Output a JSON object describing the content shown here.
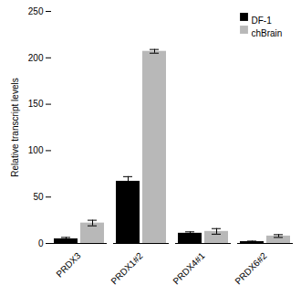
{
  "chart_data": {
    "type": "bar",
    "categories": [
      "PRDX3",
      "PRDX1#2",
      "PRDX4#1",
      "PRDX6#2"
    ],
    "series": [
      {
        "name": "DF-1",
        "color": "#000000",
        "values": [
          5,
          67,
          11,
          2
        ],
        "errors": [
          1.5,
          5,
          1.5,
          0.5
        ]
      },
      {
        "name": "chBrain",
        "color": "#b8b8b8",
        "values": [
          22,
          207,
          13,
          8
        ],
        "errors": [
          3,
          2,
          3,
          1.5
        ]
      }
    ],
    "ylabel": "Relative transcript levels",
    "ylim": [
      0,
      250
    ],
    "yticks": [
      0,
      50,
      100,
      150,
      200,
      250
    ],
    "legend": "upper right"
  }
}
